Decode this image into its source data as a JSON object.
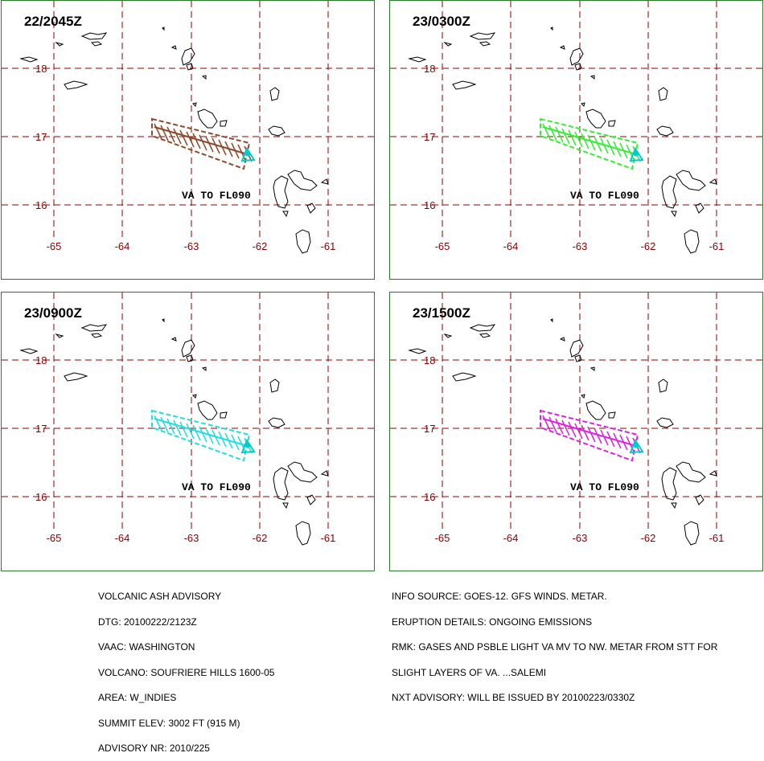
{
  "panels": [
    {
      "title": "22/2045Z",
      "plume_color": "#8b4a2b"
    },
    {
      "title": "23/0300Z",
      "plume_color": "#33ee33"
    },
    {
      "title": "23/0900Z",
      "plume_color": "#22dddd"
    },
    {
      "title": "23/1500Z",
      "plume_color": "#dd22dd"
    }
  ],
  "map": {
    "lat_labels": [
      "18",
      "17",
      "16"
    ],
    "lon_labels": [
      "-65",
      "-64",
      "-63",
      "-62",
      "-61"
    ],
    "va_label": "VA TO FL090",
    "grid_color": "#8b0000",
    "volcano_color": "#00cccc"
  },
  "footer_left": [
    "VOLCANIC ASH ADVISORY",
    "DTG: 20100222/2123Z",
    "VAAC: WASHINGTON",
    "VOLCANO: SOUFRIERE HILLS 1600-05",
    "AREA: W_INDIES",
    "SUMMIT ELEV: 3002 FT (915 M)",
    "ADVISORY NR: 2010/225"
  ],
  "footer_right": [
    "INFO SOURCE: GOES-12. GFS WINDS. METAR.",
    "ERUPTION DETAILS: ONGOING EMISSIONS",
    "RMK: GASES AND PSBLE LIGHT VA MV TO NW. METAR FROM STT FOR",
    "SLIGHT LAYERS OF VA. ...SALEMI",
    "NXT ADVISORY: WILL BE ISSUED BY 20100223/0330Z"
  ]
}
